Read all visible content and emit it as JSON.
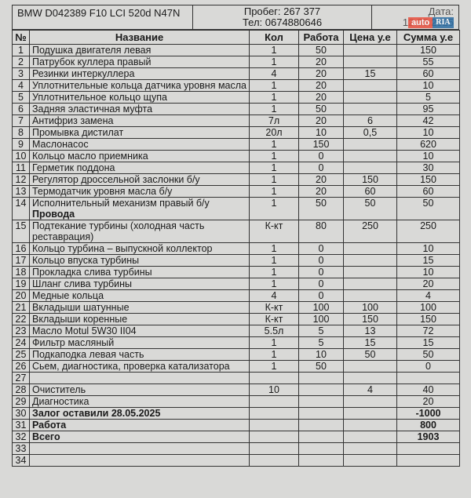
{
  "header": {
    "vehicle": "BMW D042389 F10 LCI 520d N47N",
    "mileage": "Пробег: 267 377",
    "phone": "Тел: 0674880646",
    "date": "Дата: 12.05.2025"
  },
  "watermark": {
    "part1": "auto",
    "part2": "RIA"
  },
  "columns": [
    "№",
    "Название",
    "Кол",
    "Работа",
    "Цена у.е",
    "Сумма у.е"
  ],
  "rows": [
    {
      "n": "1",
      "name": "Подушка двигателя левая",
      "qty": "1",
      "work": "50",
      "price": "",
      "sum": "150"
    },
    {
      "n": "2",
      "name": "Патрубок куллера правый",
      "qty": "1",
      "work": "20",
      "price": "",
      "sum": "55"
    },
    {
      "n": "3",
      "name": "Резинки интеркуллера",
      "qty": "4",
      "work": "20",
      "price": "15",
      "sum": "60"
    },
    {
      "n": "4",
      "name": "Уплотнительные кольца датчика уровня масла",
      "qty": "1",
      "work": "20",
      "price": "",
      "sum": "10"
    },
    {
      "n": "5",
      "name": "Уплотнительное кольцо щупа",
      "qty": "1",
      "work": "20",
      "price": "",
      "sum": "5"
    },
    {
      "n": "6",
      "name": "Задняя эластичная муфта",
      "qty": "1",
      "work": "50",
      "price": "",
      "sum": "95"
    },
    {
      "n": "7",
      "name": "Антифриз замена",
      "qty": "7л",
      "work": "20",
      "price": "6",
      "sum": "42"
    },
    {
      "n": "8",
      "name": "Промывка дистилат",
      "qty": "20л",
      "work": "10",
      "price": "0,5",
      "sum": "10"
    },
    {
      "n": "9",
      "name": "Маслонасос",
      "qty": "1",
      "work": "150",
      "price": "",
      "sum": "620"
    },
    {
      "n": "10",
      "name": "Кольцо масло приемника",
      "qty": "1",
      "work": "0",
      "price": "",
      "sum": "10"
    },
    {
      "n": "11",
      "name": "Герметик поддона",
      "qty": "1",
      "work": "0",
      "price": "",
      "sum": "30"
    },
    {
      "n": "12",
      "name": "Регулятор дроссельной заслонки б/у",
      "qty": "1",
      "work": "20",
      "price": "150",
      "sum": "150"
    },
    {
      "n": "13",
      "name": "Термодатчик уровня масла б/у",
      "qty": "1",
      "work": "20",
      "price": "60",
      "sum": "60"
    },
    {
      "n": "14",
      "name": "Исполнительный механизм правый б/у",
      "sub": "Провода",
      "qty": "1",
      "work": "50",
      "price": "50",
      "sum": "50"
    },
    {
      "n": "15",
      "name": "Подтекание турбины (холодная часть реставрация)",
      "qty": "К-кт",
      "work": "80",
      "price": "250",
      "sum": "250"
    },
    {
      "n": "16",
      "name": "Кольцо турбина – выпускной коллектор",
      "qty": "1",
      "work": "0",
      "price": "",
      "sum": "10"
    },
    {
      "n": "17",
      "name": "Кольцо впуска турбины",
      "qty": "1",
      "work": "0",
      "price": "",
      "sum": "15"
    },
    {
      "n": "18",
      "name": "Прокладка слива турбины",
      "qty": "1",
      "work": "0",
      "price": "",
      "sum": "10"
    },
    {
      "n": "19",
      "name": "Шланг слива турбины",
      "qty": "1",
      "work": "0",
      "price": "",
      "sum": "20"
    },
    {
      "n": "20",
      "name": "Медные кольца",
      "qty": "4",
      "work": "0",
      "price": "",
      "sum": "4"
    },
    {
      "n": "21",
      "name": "Вкладыши шатунные",
      "qty": "К-кт",
      "work": "100",
      "price": "100",
      "sum": "100"
    },
    {
      "n": "22",
      "name": "Вкладыши коренные",
      "qty": "К-кт",
      "work": "100",
      "price": "150",
      "sum": "150"
    },
    {
      "n": "23",
      "name": "Масло Motul 5W30 II04",
      "qty": "5.5л",
      "work": "5",
      "price": "13",
      "sum": "72"
    },
    {
      "n": "24",
      "name": "Фильтр масляный",
      "qty": "1",
      "work": "5",
      "price": "15",
      "sum": "15"
    },
    {
      "n": "25",
      "name": "Подкаподка левая часть",
      "qty": "1",
      "work": "10",
      "price": "50",
      "sum": "50"
    },
    {
      "n": "26",
      "name": "Сьем, диагностика, проверка катализатора",
      "qty": "1",
      "work": "50",
      "price": "",
      "sum": "0"
    },
    {
      "n": "27",
      "name": "",
      "qty": "",
      "work": "",
      "price": "",
      "sum": ""
    },
    {
      "n": "28",
      "name": "Очиститель",
      "qty": "10",
      "work": "",
      "price": "4",
      "sum": "40"
    },
    {
      "n": "29",
      "name": "Диагностика",
      "qty": "",
      "work": "",
      "price": "",
      "sum": "20"
    },
    {
      "n": "30",
      "name": "Залог оставили 28.05.2025",
      "bold": true,
      "qty": "",
      "work": "",
      "price": "",
      "sum": "-1000"
    },
    {
      "n": "31",
      "name": "Работа",
      "bold": true,
      "qty": "",
      "work": "",
      "price": "",
      "sum": "800"
    },
    {
      "n": "32",
      "name": "Всего",
      "bold": true,
      "qty": "",
      "work": "",
      "price": "",
      "sum": "1903"
    },
    {
      "n": "33",
      "name": "",
      "qty": "",
      "work": "",
      "price": "",
      "sum": ""
    },
    {
      "n": "34",
      "name": "",
      "qty": "",
      "work": "",
      "price": "",
      "sum": ""
    }
  ]
}
